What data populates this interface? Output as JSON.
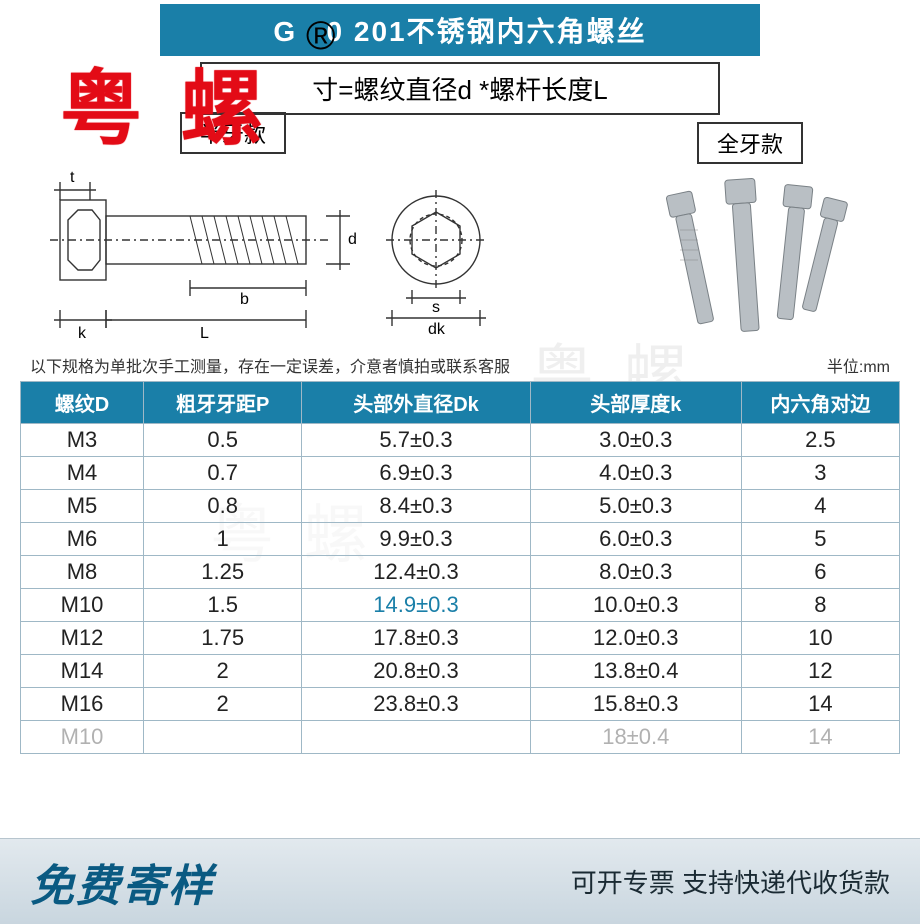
{
  "header": {
    "title": "G   0 201不锈钢内六角螺丝"
  },
  "formula": {
    "text": "寸=螺纹直径d *螺杆长度L"
  },
  "brand": {
    "name": "粤 螺",
    "reg": "®"
  },
  "styles": {
    "half": "半牙款",
    "full": "全牙款"
  },
  "note": {
    "text": "以下规格为单批次手工测量，存在一定误差，介意者慎拍或联系客服",
    "unit": "半位:mm"
  },
  "watermark": "粤 螺",
  "table": {
    "columns": [
      "螺纹D",
      "粗牙牙距P",
      "头部外直径Dk",
      "头部厚度k",
      "内六角对边"
    ],
    "col_widths": [
      "14%",
      "18%",
      "26%",
      "24%",
      "18%"
    ],
    "header_bg": "#1a7fa8",
    "header_color": "#ffffff",
    "border_color": "#9fb8c6",
    "rows": [
      [
        "M3",
        "0.5",
        "5.7±0.3",
        "3.0±0.3",
        "2.5"
      ],
      [
        "M4",
        "0.7",
        "6.9±0.3",
        "4.0±0.3",
        "3"
      ],
      [
        "M5",
        "0.8",
        "8.4±0.3",
        "5.0±0.3",
        "4"
      ],
      [
        "M6",
        "1",
        "9.9±0.3",
        "6.0±0.3",
        "5"
      ],
      [
        "M8",
        "1.25",
        "12.4±0.3",
        "8.0±0.3",
        "6"
      ],
      [
        "M10",
        "1.5",
        "14.9±0.3",
        "10.0±0.3",
        "8"
      ],
      [
        "M12",
        "1.75",
        "17.8±0.3",
        "12.0±0.3",
        "10"
      ],
      [
        "M14",
        "2",
        "20.8±0.3",
        "13.8±0.4",
        "12"
      ],
      [
        "M16",
        "2",
        "23.8±0.3",
        "15.8±0.3",
        "14"
      ],
      [
        "M10",
        "",
        "",
        "18±0.4",
        "14"
      ]
    ],
    "highlight_cell": {
      "row": 5,
      "col": 2
    }
  },
  "diagram": {
    "labels": {
      "t": "t",
      "k": "k",
      "L": "L",
      "b": "b",
      "d": "d",
      "s": "s",
      "dk": "dk"
    },
    "line_color": "#333333"
  },
  "footer": {
    "left": "免费寄样",
    "right": "可开专票 支持快递代收货款"
  },
  "colors": {
    "brand_blue": "#1a7fa8",
    "brand_red": "#e30b16",
    "footer_grad_top": "#e2e9ee",
    "footer_grad_bottom": "#c9d6df",
    "dark_text": "#0a5a82"
  }
}
